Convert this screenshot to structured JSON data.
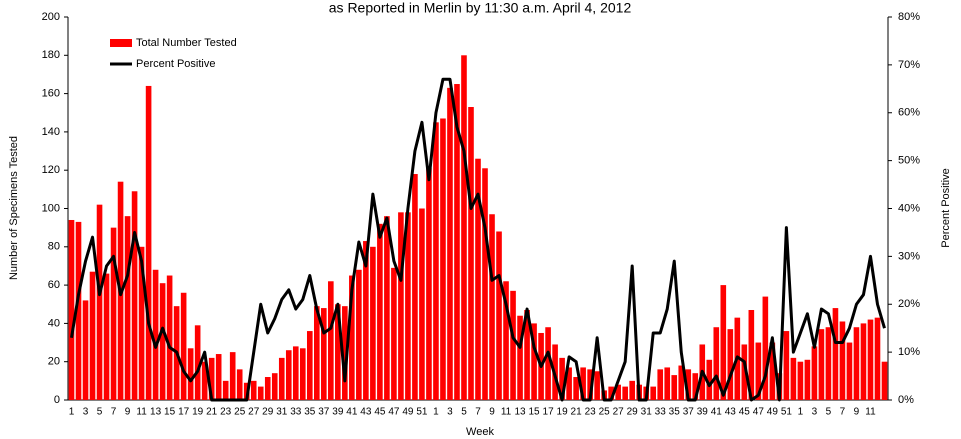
{
  "chart_data": {
    "type": "combo",
    "title": "as Reported in Merlin by 11:30 a.m. April 4, 2012",
    "x_label": "Week",
    "y_label": "Number of Specimens Tested",
    "y2_label": "Percent Positive",
    "legend": "upper-left",
    "categories": [
      "1",
      null,
      "3",
      null,
      "5",
      null,
      "7",
      null,
      "9",
      null,
      "11",
      null,
      "13",
      null,
      "15",
      null,
      "17",
      null,
      "19",
      null,
      "21",
      null,
      "23",
      null,
      "25",
      null,
      "27",
      null,
      "29",
      null,
      "31",
      null,
      "33",
      null,
      "35",
      null,
      "37",
      null,
      "39",
      null,
      "41",
      null,
      "43",
      null,
      "45",
      null,
      "47",
      null,
      "49",
      null,
      "51",
      null,
      "1",
      null,
      "3",
      null,
      "5",
      null,
      "7",
      null,
      "9",
      null,
      "11",
      null,
      "13",
      null,
      "15",
      null,
      "17",
      null,
      "19",
      null,
      "21",
      null,
      "23",
      null,
      "25",
      null,
      "27",
      null,
      "29",
      null,
      "31",
      null,
      "33",
      null,
      "35",
      null,
      "37",
      null,
      "39",
      null,
      "41",
      null,
      "43",
      null,
      "45",
      null,
      "47",
      null,
      "49",
      null,
      "51",
      null,
      "1",
      null,
      "3",
      null,
      "5",
      null,
      "7",
      null,
      "9",
      null,
      "11",
      null,
      null
    ],
    "series": [
      {
        "name": "Total Number Tested",
        "type": "bar",
        "color": "#ff0000",
        "axis": "y",
        "values": [
          94,
          93,
          52,
          67,
          102,
          66,
          90,
          114,
          96,
          109,
          80,
          164,
          68,
          61,
          65,
          49,
          56,
          27,
          39,
          20,
          22,
          24,
          10,
          25,
          16,
          9,
          10,
          7,
          12,
          14,
          22,
          26,
          28,
          27,
          36,
          49,
          48,
          62,
          50,
          49,
          65,
          68,
          83,
          80,
          92,
          96,
          69,
          98,
          98,
          118,
          100,
          121,
          145,
          147,
          163,
          165,
          180,
          153,
          126,
          121,
          97,
          88,
          62,
          57,
          44,
          47,
          40,
          35,
          38,
          29,
          22,
          17,
          12,
          17,
          16,
          15,
          5,
          7,
          8,
          7,
          10,
          8,
          7,
          7,
          16,
          17,
          13,
          18,
          16,
          14,
          29,
          21,
          38,
          60,
          37,
          43,
          29,
          47,
          30,
          54,
          30,
          14,
          36,
          22,
          20,
          21,
          28,
          37,
          38,
          48,
          41,
          30,
          38,
          40,
          42,
          43,
          20
        ]
      },
      {
        "name": "Percent Positive",
        "type": "line",
        "color": "#000000",
        "axis": "y2",
        "values": [
          13,
          22,
          29,
          34,
          22,
          28,
          30,
          22,
          26,
          35,
          29,
          16,
          11,
          15,
          11,
          10,
          6,
          4,
          6,
          10,
          0,
          0,
          0,
          0,
          0,
          0,
          10,
          20,
          14,
          17,
          21,
          23,
          19,
          21,
          26,
          19,
          14,
          15,
          20,
          4,
          23,
          33,
          28,
          43,
          34,
          38,
          29,
          25,
          40,
          52,
          58,
          46,
          60,
          67,
          67,
          57,
          52,
          40,
          43,
          36,
          25,
          26,
          20,
          13,
          11,
          19,
          11,
          7,
          10,
          5,
          0,
          9,
          8,
          0,
          0,
          13,
          0,
          0,
          4,
          8,
          28,
          0,
          0,
          14,
          14,
          19,
          29,
          10,
          0,
          0,
          6,
          3,
          5,
          1,
          5,
          9,
          8,
          0,
          1,
          5,
          13,
          0,
          36,
          10,
          14,
          18,
          11,
          19,
          18,
          12,
          12,
          15,
          20,
          22,
          30,
          20,
          15
        ]
      }
    ],
    "ylim": [
      0,
      200
    ],
    "yticks": [
      0,
      20,
      40,
      60,
      80,
      100,
      120,
      140,
      160,
      180,
      200
    ],
    "y2lim": [
      0,
      80
    ],
    "y2ticks": [
      {
        "value": 0,
        "label": "0%"
      },
      {
        "value": 10,
        "label": "10%"
      },
      {
        "value": 20,
        "label": "20%"
      },
      {
        "value": 30,
        "label": "30%"
      },
      {
        "value": 40,
        "label": "40%"
      },
      {
        "value": 50,
        "label": "50%"
      },
      {
        "value": 60,
        "label": "60%"
      },
      {
        "value": 70,
        "label": "70%"
      },
      {
        "value": 80,
        "label": "80%"
      }
    ]
  }
}
